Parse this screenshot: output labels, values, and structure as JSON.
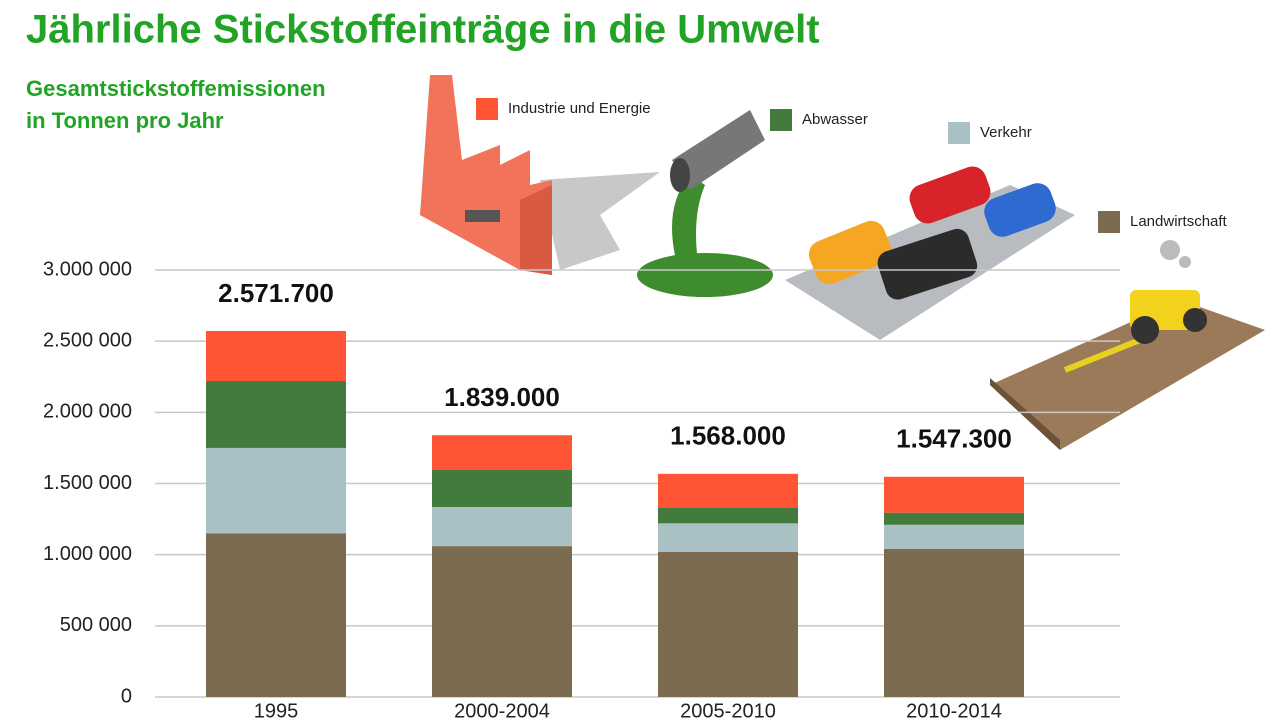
{
  "chart_data": {
    "type": "stacked_bar",
    "title": "Jährliche Stickstoffeinträge in die Umwelt",
    "subtitle_lines": [
      "Gesamtstickstoffemissionen",
      "in Tonnen pro Jahr"
    ],
    "categories": [
      "1995",
      "2000-2004",
      "2005-2010",
      "2010-2014"
    ],
    "series": [
      {
        "name": "Landwirtschaft",
        "color": "#7b6b51",
        "values": [
          1150000,
          1060000,
          1020000,
          1040000
        ]
      },
      {
        "name": "Verkehr",
        "color": "#a9c1c4",
        "values": [
          600000,
          275000,
          200000,
          170000
        ]
      },
      {
        "name": "Abwasser",
        "color": "#427b3b",
        "values": [
          470000,
          260000,
          108000,
          85000
        ]
      },
      {
        "name": "Industrie und Energie",
        "color": "#ff5535",
        "values": [
          351700,
          244000,
          240000,
          252300
        ]
      }
    ],
    "totals": [
      2571700,
      1839000,
      1568000,
      1547300
    ],
    "total_labels": [
      "2.571.700",
      "1.839.000",
      "1.568.000",
      "1.547.300"
    ],
    "ylim": [
      0,
      3000000
    ],
    "yticks": [
      0,
      {
        "value": 500000,
        "label": "500 000"
      },
      {
        "value": 1000000,
        "label": "1.000 000"
      },
      {
        "value": 1500000,
        "label": "1.500 000"
      },
      {
        "value": 2000000,
        "label": "2.000 000"
      },
      {
        "value": 2500000,
        "label": "2.500 000"
      },
      {
        "value": 3000000,
        "label": "3.000 000"
      }
    ],
    "grid": true
  }
}
